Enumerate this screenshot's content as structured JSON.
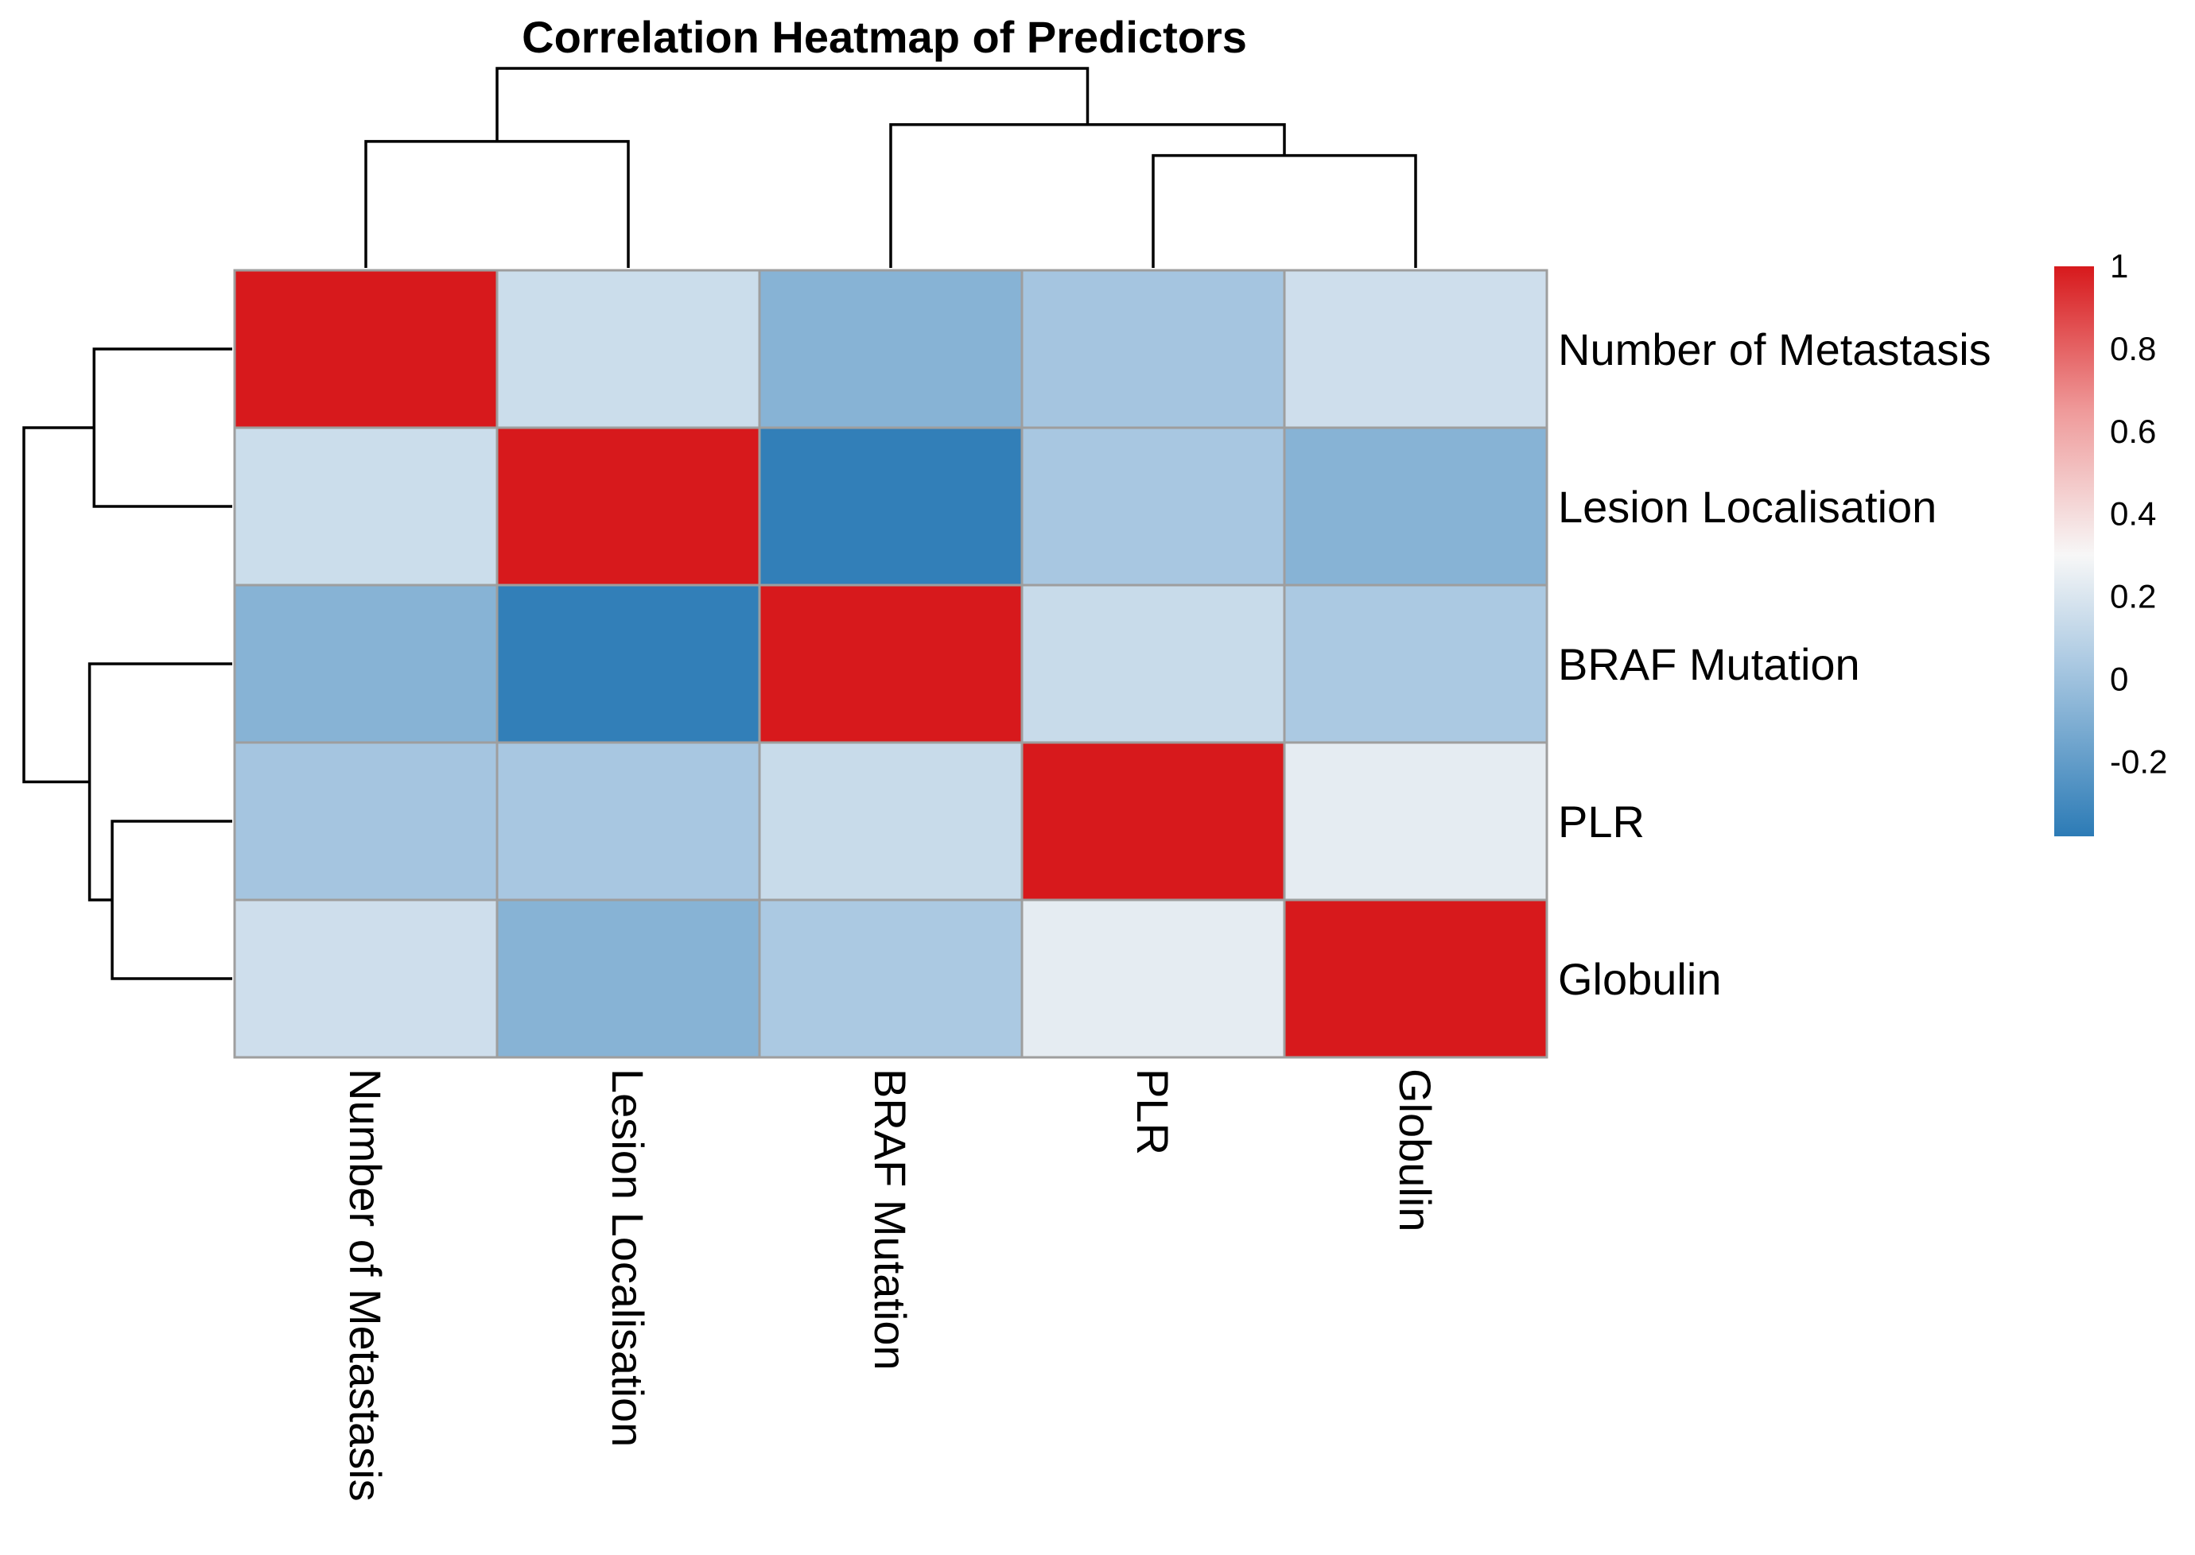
{
  "chart_data": {
    "type": "heatmap",
    "title": "Correlation Heatmap of Predictors",
    "variables": [
      "Number of Metastasis",
      "Lesion Localisation",
      "BRAF Mutation",
      "PLR",
      "Globulin"
    ],
    "rows": [
      "Number of Metastasis",
      "Lesion Localisation",
      "BRAF Mutation",
      "PLR",
      "Globulin"
    ],
    "columns": [
      "Number of Metastasis",
      "Lesion Localisation",
      "BRAF Mutation",
      "PLR",
      "Globulin"
    ],
    "values": [
      [
        1.0,
        0.15,
        -0.08,
        0.02,
        0.16
      ],
      [
        0.15,
        1.0,
        -0.36,
        0.03,
        -0.08
      ],
      [
        -0.08,
        -0.36,
        1.0,
        0.14,
        0.04
      ],
      [
        0.02,
        0.03,
        0.14,
        1.0,
        0.24
      ],
      [
        0.16,
        -0.08,
        0.04,
        0.24,
        1.0
      ]
    ],
    "color_scale": {
      "min": -0.38,
      "max": 1.0,
      "ticks": [
        1,
        0.8,
        0.6,
        0.4,
        0.2,
        0,
        -0.2
      ],
      "tick_labels": [
        "1",
        "0.8",
        "0.6",
        "0.4",
        "0.2",
        "0",
        "-0.2"
      ],
      "stops": [
        {
          "value": -0.38,
          "color": "#2c7bb6"
        },
        {
          "value": 0.05,
          "color": "#aecbe3"
        },
        {
          "value": 0.3,
          "color": "#f7f7f7"
        },
        {
          "value": 0.65,
          "color": "#ef9a9a"
        },
        {
          "value": 1.0,
          "color": "#d7191c"
        }
      ]
    },
    "column_dendrogram": {
      "merges": [
        {
          "id": "c1",
          "left": "Number of Metastasis",
          "right": "Lesion Localisation",
          "height": 0.45
        },
        {
          "id": "c2",
          "left": "PLR",
          "right": "Globulin",
          "height": 0.4
        },
        {
          "id": "c3",
          "left": "BRAF Mutation",
          "right": "c2",
          "height": 0.51
        },
        {
          "id": "c4",
          "left": "c1",
          "right": "c3",
          "height": 0.71
        }
      ]
    },
    "row_dendrogram": {
      "merges": [
        {
          "id": "r1",
          "left": "PLR",
          "right": "Globulin",
          "height": 0.53
        },
        {
          "id": "r2",
          "left": "Number of Metastasis",
          "right": "Lesion Localisation",
          "height": 0.61
        },
        {
          "id": "r3",
          "left": "BRAF Mutation",
          "right": "r1",
          "height": 0.63
        },
        {
          "id": "r4",
          "left": "r2",
          "right": "r3",
          "height": 0.92
        }
      ]
    }
  }
}
